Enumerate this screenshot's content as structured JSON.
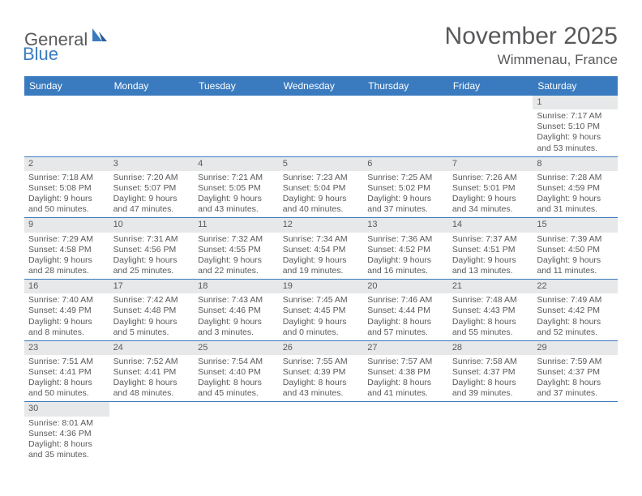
{
  "logo": {
    "general": "General",
    "blue": "Blue"
  },
  "title": "November 2025",
  "location": "Wimmenau, France",
  "daysOfWeek": [
    "Sunday",
    "Monday",
    "Tuesday",
    "Wednesday",
    "Thursday",
    "Friday",
    "Saturday"
  ],
  "colors": {
    "header_bg": "#3a7bbf",
    "header_text": "#ffffff",
    "daynum_bg": "#e7e8e9",
    "text": "#58595b",
    "row_divider": "#3a7bbf"
  },
  "cells": [
    [
      null,
      null,
      null,
      null,
      null,
      null,
      {
        "n": "1",
        "sr": "Sunrise: 7:17 AM",
        "ss": "Sunset: 5:10 PM",
        "dl": "Daylight: 9 hours and 53 minutes."
      }
    ],
    [
      {
        "n": "2",
        "sr": "Sunrise: 7:18 AM",
        "ss": "Sunset: 5:08 PM",
        "dl": "Daylight: 9 hours and 50 minutes."
      },
      {
        "n": "3",
        "sr": "Sunrise: 7:20 AM",
        "ss": "Sunset: 5:07 PM",
        "dl": "Daylight: 9 hours and 47 minutes."
      },
      {
        "n": "4",
        "sr": "Sunrise: 7:21 AM",
        "ss": "Sunset: 5:05 PM",
        "dl": "Daylight: 9 hours and 43 minutes."
      },
      {
        "n": "5",
        "sr": "Sunrise: 7:23 AM",
        "ss": "Sunset: 5:04 PM",
        "dl": "Daylight: 9 hours and 40 minutes."
      },
      {
        "n": "6",
        "sr": "Sunrise: 7:25 AM",
        "ss": "Sunset: 5:02 PM",
        "dl": "Daylight: 9 hours and 37 minutes."
      },
      {
        "n": "7",
        "sr": "Sunrise: 7:26 AM",
        "ss": "Sunset: 5:01 PM",
        "dl": "Daylight: 9 hours and 34 minutes."
      },
      {
        "n": "8",
        "sr": "Sunrise: 7:28 AM",
        "ss": "Sunset: 4:59 PM",
        "dl": "Daylight: 9 hours and 31 minutes."
      }
    ],
    [
      {
        "n": "9",
        "sr": "Sunrise: 7:29 AM",
        "ss": "Sunset: 4:58 PM",
        "dl": "Daylight: 9 hours and 28 minutes."
      },
      {
        "n": "10",
        "sr": "Sunrise: 7:31 AM",
        "ss": "Sunset: 4:56 PM",
        "dl": "Daylight: 9 hours and 25 minutes."
      },
      {
        "n": "11",
        "sr": "Sunrise: 7:32 AM",
        "ss": "Sunset: 4:55 PM",
        "dl": "Daylight: 9 hours and 22 minutes."
      },
      {
        "n": "12",
        "sr": "Sunrise: 7:34 AM",
        "ss": "Sunset: 4:54 PM",
        "dl": "Daylight: 9 hours and 19 minutes."
      },
      {
        "n": "13",
        "sr": "Sunrise: 7:36 AM",
        "ss": "Sunset: 4:52 PM",
        "dl": "Daylight: 9 hours and 16 minutes."
      },
      {
        "n": "14",
        "sr": "Sunrise: 7:37 AM",
        "ss": "Sunset: 4:51 PM",
        "dl": "Daylight: 9 hours and 13 minutes."
      },
      {
        "n": "15",
        "sr": "Sunrise: 7:39 AM",
        "ss": "Sunset: 4:50 PM",
        "dl": "Daylight: 9 hours and 11 minutes."
      }
    ],
    [
      {
        "n": "16",
        "sr": "Sunrise: 7:40 AM",
        "ss": "Sunset: 4:49 PM",
        "dl": "Daylight: 9 hours and 8 minutes."
      },
      {
        "n": "17",
        "sr": "Sunrise: 7:42 AM",
        "ss": "Sunset: 4:48 PM",
        "dl": "Daylight: 9 hours and 5 minutes."
      },
      {
        "n": "18",
        "sr": "Sunrise: 7:43 AM",
        "ss": "Sunset: 4:46 PM",
        "dl": "Daylight: 9 hours and 3 minutes."
      },
      {
        "n": "19",
        "sr": "Sunrise: 7:45 AM",
        "ss": "Sunset: 4:45 PM",
        "dl": "Daylight: 9 hours and 0 minutes."
      },
      {
        "n": "20",
        "sr": "Sunrise: 7:46 AM",
        "ss": "Sunset: 4:44 PM",
        "dl": "Daylight: 8 hours and 57 minutes."
      },
      {
        "n": "21",
        "sr": "Sunrise: 7:48 AM",
        "ss": "Sunset: 4:43 PM",
        "dl": "Daylight: 8 hours and 55 minutes."
      },
      {
        "n": "22",
        "sr": "Sunrise: 7:49 AM",
        "ss": "Sunset: 4:42 PM",
        "dl": "Daylight: 8 hours and 52 minutes."
      }
    ],
    [
      {
        "n": "23",
        "sr": "Sunrise: 7:51 AM",
        "ss": "Sunset: 4:41 PM",
        "dl": "Daylight: 8 hours and 50 minutes."
      },
      {
        "n": "24",
        "sr": "Sunrise: 7:52 AM",
        "ss": "Sunset: 4:41 PM",
        "dl": "Daylight: 8 hours and 48 minutes."
      },
      {
        "n": "25",
        "sr": "Sunrise: 7:54 AM",
        "ss": "Sunset: 4:40 PM",
        "dl": "Daylight: 8 hours and 45 minutes."
      },
      {
        "n": "26",
        "sr": "Sunrise: 7:55 AM",
        "ss": "Sunset: 4:39 PM",
        "dl": "Daylight: 8 hours and 43 minutes."
      },
      {
        "n": "27",
        "sr": "Sunrise: 7:57 AM",
        "ss": "Sunset: 4:38 PM",
        "dl": "Daylight: 8 hours and 41 minutes."
      },
      {
        "n": "28",
        "sr": "Sunrise: 7:58 AM",
        "ss": "Sunset: 4:37 PM",
        "dl": "Daylight: 8 hours and 39 minutes."
      },
      {
        "n": "29",
        "sr": "Sunrise: 7:59 AM",
        "ss": "Sunset: 4:37 PM",
        "dl": "Daylight: 8 hours and 37 minutes."
      }
    ],
    [
      {
        "n": "30",
        "sr": "Sunrise: 8:01 AM",
        "ss": "Sunset: 4:36 PM",
        "dl": "Daylight: 8 hours and 35 minutes."
      },
      null,
      null,
      null,
      null,
      null,
      null
    ]
  ]
}
